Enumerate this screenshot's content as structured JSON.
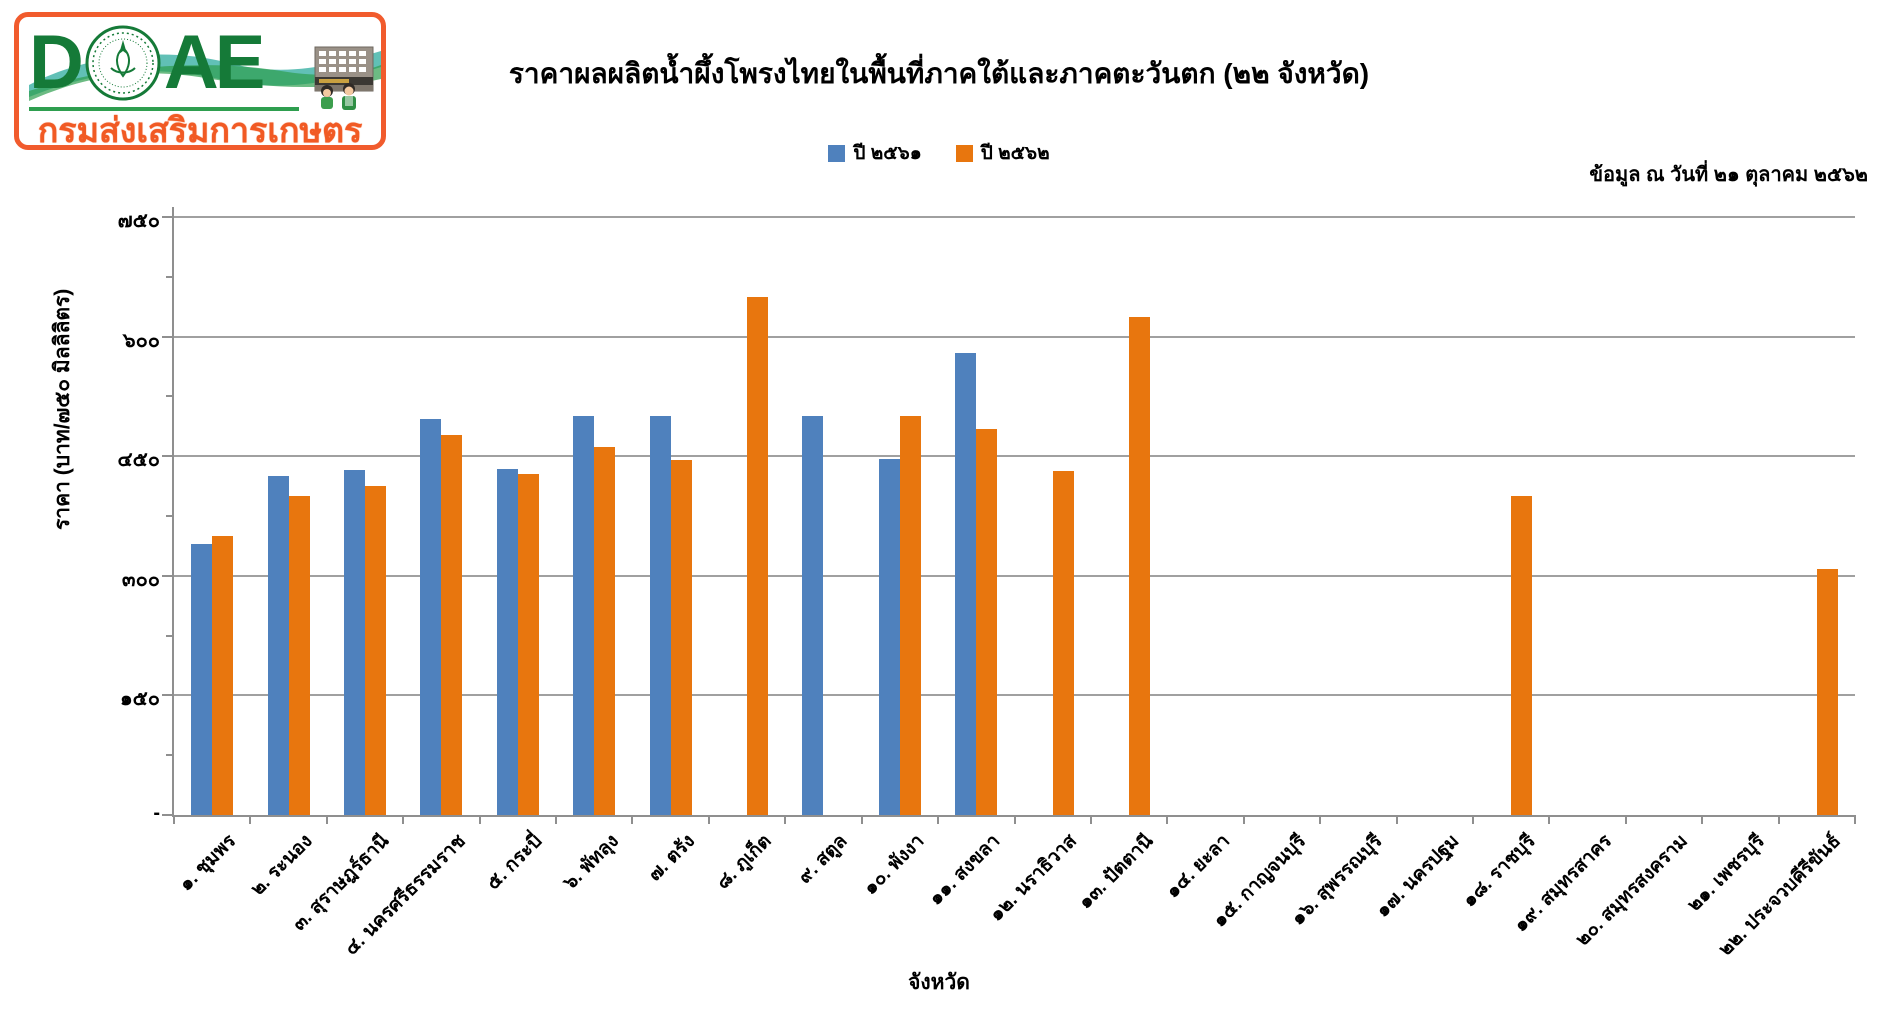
{
  "logo": {
    "acronym_d": "D",
    "acronym_ae": "AE",
    "org_name": "กรมส่งเสริมการเกษตร",
    "border_color": "#F15B2D",
    "letter_color": "#157A38",
    "org_color": "#F15A24"
  },
  "note": "ข้อมูล ณ วันที่ ๒๑ ตุลาคม ๒๕๖๒",
  "chart_data": {
    "type": "bar",
    "title": "ราคาผลผลิตน้ำผึ้งโพรงไทยในพื้นที่ภาคใต้และภาคตะวันตก (๒๒ จังหวัด)",
    "xlabel": "จังหวัด",
    "ylabel": "ราคา (บาท/๗๕๐ มิลลิลิตร)",
    "ylim": [
      0,
      750
    ],
    "ytick_interval": 150,
    "ytick_values": [
      0,
      150,
      300,
      450,
      600,
      750
    ],
    "ytick_labels": [
      "-",
      "๑๕๐",
      "๓๐๐",
      "๔๕๐",
      "๖๐๐",
      "๗๕๐"
    ],
    "grid": true,
    "legend_position": "top-center",
    "gridline_color": "#A0A0A0",
    "categories": [
      "๑. ชุมพร",
      "๒. ระนอง",
      "๓. สุราษฎร์ธานี",
      "๔. นครศรีธรรมราช",
      "๕. กระบี่",
      "๖. พัทลุง",
      "๗. ตรัง",
      "๘. ภูเก็ต",
      "๙. สตูล",
      "๑๐. พังงา",
      "๑๑. สงขลา",
      "๑๒. นราธิวาส",
      "๑๓. ปัตตานี",
      "๑๔. ยะลา",
      "๑๕. กาญจนบุรี",
      "๑๖. สุพรรณบุรี",
      "๑๗. นครปฐม",
      "๑๘. ราชบุรี",
      "๑๙. สมุทรสาคร",
      "๒๐. สมุทรสงคราม",
      "๒๑. เพชรบุรี",
      "๒๒. ประจวบคีรีขันธ์"
    ],
    "series": [
      {
        "name": "ปี ๒๕๖๑",
        "color": "#4F81BD",
        "values": [
          340,
          425,
          433,
          497,
          434,
          500,
          500,
          null,
          500,
          446,
          579,
          null,
          null,
          null,
          null,
          null,
          null,
          null,
          null,
          null,
          null,
          null
        ]
      },
      {
        "name": "ปี ๒๕๖๒",
        "color": "#E8760E",
        "values": [
          350,
          400,
          412,
          477,
          428,
          461,
          445,
          650,
          null,
          500,
          484,
          432,
          625,
          null,
          null,
          null,
          null,
          400,
          null,
          null,
          null,
          309
        ]
      }
    ]
  }
}
